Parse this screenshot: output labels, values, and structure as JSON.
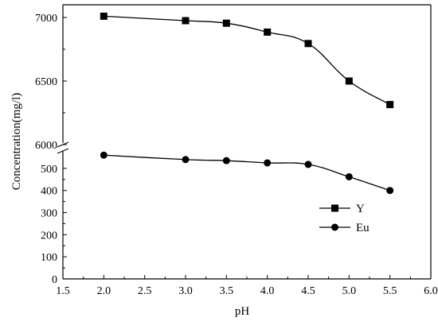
{
  "chart_data": {
    "type": "line",
    "xlabel": "pH",
    "ylabel": "Concentration(mg/l)",
    "x_ticks": [
      "1.5",
      "2.0",
      "2.5",
      "3.0",
      "3.5",
      "4.0",
      "4.5",
      "5.0",
      "5.5",
      "6.0"
    ],
    "xlim": [
      1.5,
      6.0
    ],
    "y_lower_ticks": [
      "0",
      "100",
      "200",
      "300",
      "400",
      "500"
    ],
    "y_upper_ticks": [
      "6000",
      "6500",
      "7000"
    ],
    "ylim_lower": [
      0,
      550
    ],
    "ylim_upper": [
      6000,
      7100
    ],
    "axis_break": true,
    "grid": false,
    "legend_position": "right-lower",
    "x": [
      2.0,
      3.0,
      3.5,
      4.0,
      4.5,
      5.0,
      5.5
    ],
    "series": [
      {
        "name": "Y",
        "marker": "square",
        "values": [
          7010,
          6975,
          6955,
          6885,
          6795,
          6500,
          6315
        ]
      },
      {
        "name": "Eu",
        "marker": "circle",
        "values": [
          560,
          540,
          535,
          525,
          518,
          462,
          400
        ]
      }
    ]
  }
}
